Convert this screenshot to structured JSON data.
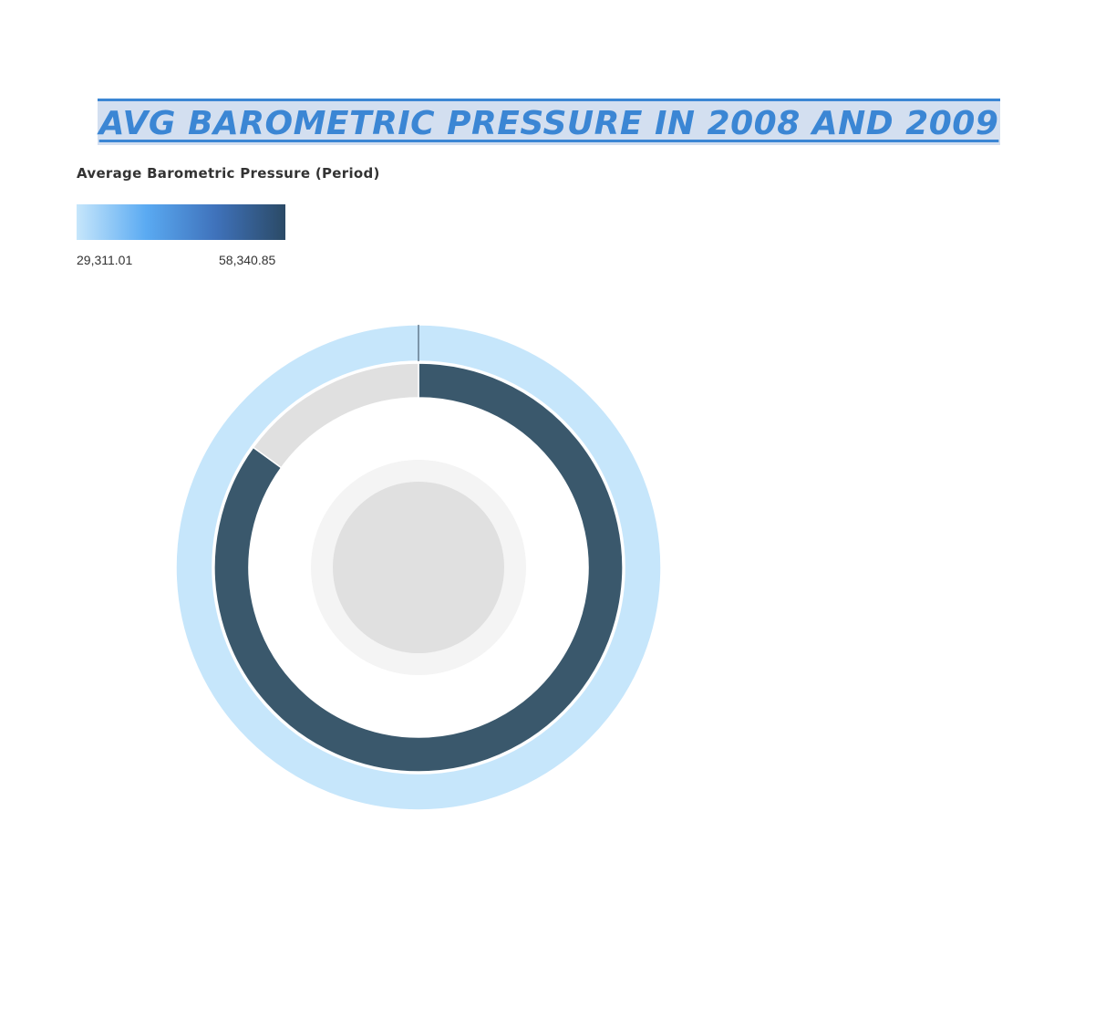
{
  "page": {
    "title": "AVG BAROMETRIC PRESSURE IN 2008 AND 2009"
  },
  "legend": {
    "title": "Average Barometric Pressure (Period)",
    "min_label": "29,311.01",
    "max_label": "58,340.85",
    "gradient_colors": [
      "#c6e6fb",
      "#5aaaf2",
      "#3f72bb",
      "#2b4a66"
    ]
  },
  "chart_data": {
    "type": "pie",
    "style": "nested-donut",
    "color_scale": {
      "min": 29311.01,
      "max": 58340.85
    },
    "rings": [
      {
        "level": "outer",
        "segments": [
          {
            "label": "",
            "fraction": 1.0,
            "value": 29311.01,
            "color": "#c6e6fb"
          }
        ]
      },
      {
        "level": "inner",
        "segments": [
          {
            "label": "",
            "fraction": 0.85,
            "value": 58340.85,
            "color": "#3a586c"
          },
          {
            "label": "",
            "fraction": 0.15,
            "value": null,
            "color": "#e0e0e0"
          }
        ]
      }
    ],
    "center_colors": [
      "#f4f4f4",
      "#e0e0e0"
    ],
    "legend_position": "top-left"
  }
}
